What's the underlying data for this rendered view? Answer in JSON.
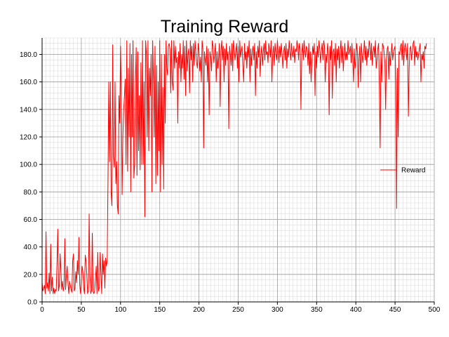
{
  "chart_data": {
    "type": "line",
    "title": "Training Reward",
    "xlabel": "",
    "ylabel": "",
    "xlim": [
      0,
      500
    ],
    "ylim": [
      0,
      192
    ],
    "x_ticks": [
      "0",
      "50",
      "100",
      "150",
      "200",
      "250",
      "300",
      "350",
      "400",
      "450",
      "500"
    ],
    "y_ticks": [
      "0.0",
      "20.0",
      "40.0",
      "60.0",
      "80.0",
      "100.0",
      "120.0",
      "140.0",
      "160.0",
      "180.0"
    ],
    "grid": true,
    "legend": {
      "position": "right",
      "entries": [
        "Reward"
      ]
    },
    "series": [
      {
        "name": "Reward",
        "color": "#ff0000",
        "x_start": 0,
        "x_step": 1,
        "values": [
          14,
          8,
          10,
          12,
          6,
          51,
          10,
          14,
          8,
          21,
          6,
          42,
          8,
          18,
          6,
          10,
          6,
          9,
          8,
          28,
          53,
          8,
          12,
          35,
          22,
          9,
          15,
          8,
          11,
          46,
          9,
          20,
          26,
          14,
          6,
          15,
          12,
          9,
          7,
          30,
          35,
          8,
          10,
          22,
          14,
          30,
          20,
          47,
          12,
          6,
          18,
          26,
          22,
          10,
          6,
          34,
          30,
          20,
          6,
          8,
          64,
          20,
          6,
          8,
          50,
          8,
          6,
          8,
          16,
          26,
          6,
          36,
          8,
          10,
          36,
          20,
          6,
          35,
          20,
          30,
          10,
          32,
          26,
          30,
          90,
          160,
          102,
          160,
          80,
          70,
          187,
          106,
          98,
          160,
          86,
          102,
          70,
          64,
          150,
          130,
          186,
          150,
          78,
          120,
          140,
          150,
          162,
          100,
          190,
          95,
          170,
          120,
          188,
          80,
          180,
          120,
          190,
          90,
          100,
          160,
          185,
          92,
          182,
          110,
          150,
          96,
          174,
          100,
          190,
          100,
          160,
          62,
          190,
          180,
          120,
          190,
          110,
          170,
          150,
          180,
          80,
          190,
          160,
          120,
          186,
          86,
          172,
          92,
          160,
          110,
          190,
          80,
          180,
          100,
          156,
          82,
          180,
          130,
          190,
          170,
          165,
          186,
          188,
          184,
          152,
          190,
          160,
          154,
          190,
          170,
          186,
          174,
          178,
          130,
          182,
          170,
          188,
          160,
          180,
          170,
          190,
          162,
          186,
          150,
          190,
          168,
          180,
          184,
          152,
          190,
          176,
          186,
          160,
          188,
          172,
          190,
          182,
          174,
          170,
          188,
          182,
          168,
          178,
          160,
          190,
          184,
          112,
          182,
          176,
          172,
          186,
          160,
          184,
          136,
          182,
          178,
          168,
          190,
          186,
          174,
          180,
          188,
          160,
          182,
          170,
          176,
          188,
          142,
          182,
          190,
          176,
          186,
          160,
          184,
          172,
          188,
          176,
          182,
          126,
          186,
          180,
          172,
          188,
          168,
          190,
          184,
          176,
          182,
          188,
          170,
          186,
          160,
          190,
          178,
          182,
          186,
          172,
          160,
          188,
          176,
          182,
          170,
          186,
          178,
          190,
          160,
          184,
          172,
          182,
          186,
          176,
          188,
          150,
          182,
          170,
          186,
          178,
          190,
          164,
          180,
          186,
          172,
          182,
          188,
          176,
          190,
          180,
          182,
          174,
          188,
          184,
          178,
          190,
          160,
          180,
          186,
          172,
          188,
          180,
          176,
          190,
          182,
          174,
          186,
          178,
          188,
          180,
          170,
          182,
          186,
          176,
          188,
          170,
          184,
          178,
          190,
          182,
          176,
          188,
          180,
          178,
          186,
          174,
          184,
          182,
          190,
          186,
          176,
          188,
          184,
          140,
          180,
          188,
          176,
          190,
          182,
          178,
          186,
          184,
          172,
          188,
          166,
          182,
          160,
          176,
          186,
          180,
          188,
          150,
          182,
          170,
          186,
          178,
          190,
          184,
          174,
          182,
          188,
          176,
          190,
          186,
          160,
          180,
          174,
          188,
          182,
          136,
          186,
          176,
          190,
          148,
          182,
          184,
          172,
          188,
          160,
          184,
          176,
          186,
          170,
          182,
          190,
          174,
          186,
          168,
          180,
          188,
          176,
          182,
          176,
          190,
          180,
          182,
          186,
          174,
          188,
          178,
          160,
          184,
          170,
          176,
          188,
          182,
          156,
          178,
          186,
          160,
          188,
          180,
          174,
          182,
          190,
          176,
          186,
          172,
          184,
          178,
          190,
          186,
          176,
          188,
          172,
          182,
          186,
          178,
          190,
          170,
          176,
          184,
          188,
          156,
          112,
          182,
          160,
          188,
          186,
          182,
          174,
          140,
          176,
          184,
          186,
          162,
          182,
          172,
          180,
          188,
          176,
          182,
          184,
          186,
          160,
          68,
          170,
          120,
          182,
          180,
          186,
          188,
          176,
          190,
          172,
          184,
          188,
          182,
          176,
          188,
          135,
          170,
          184,
          186,
          176,
          182,
          188,
          190,
          172,
          186,
          178,
          182,
          176,
          180,
          184,
          188,
          160,
          180,
          176,
          182,
          170,
          186,
          184,
          188
        ]
      }
    ]
  }
}
